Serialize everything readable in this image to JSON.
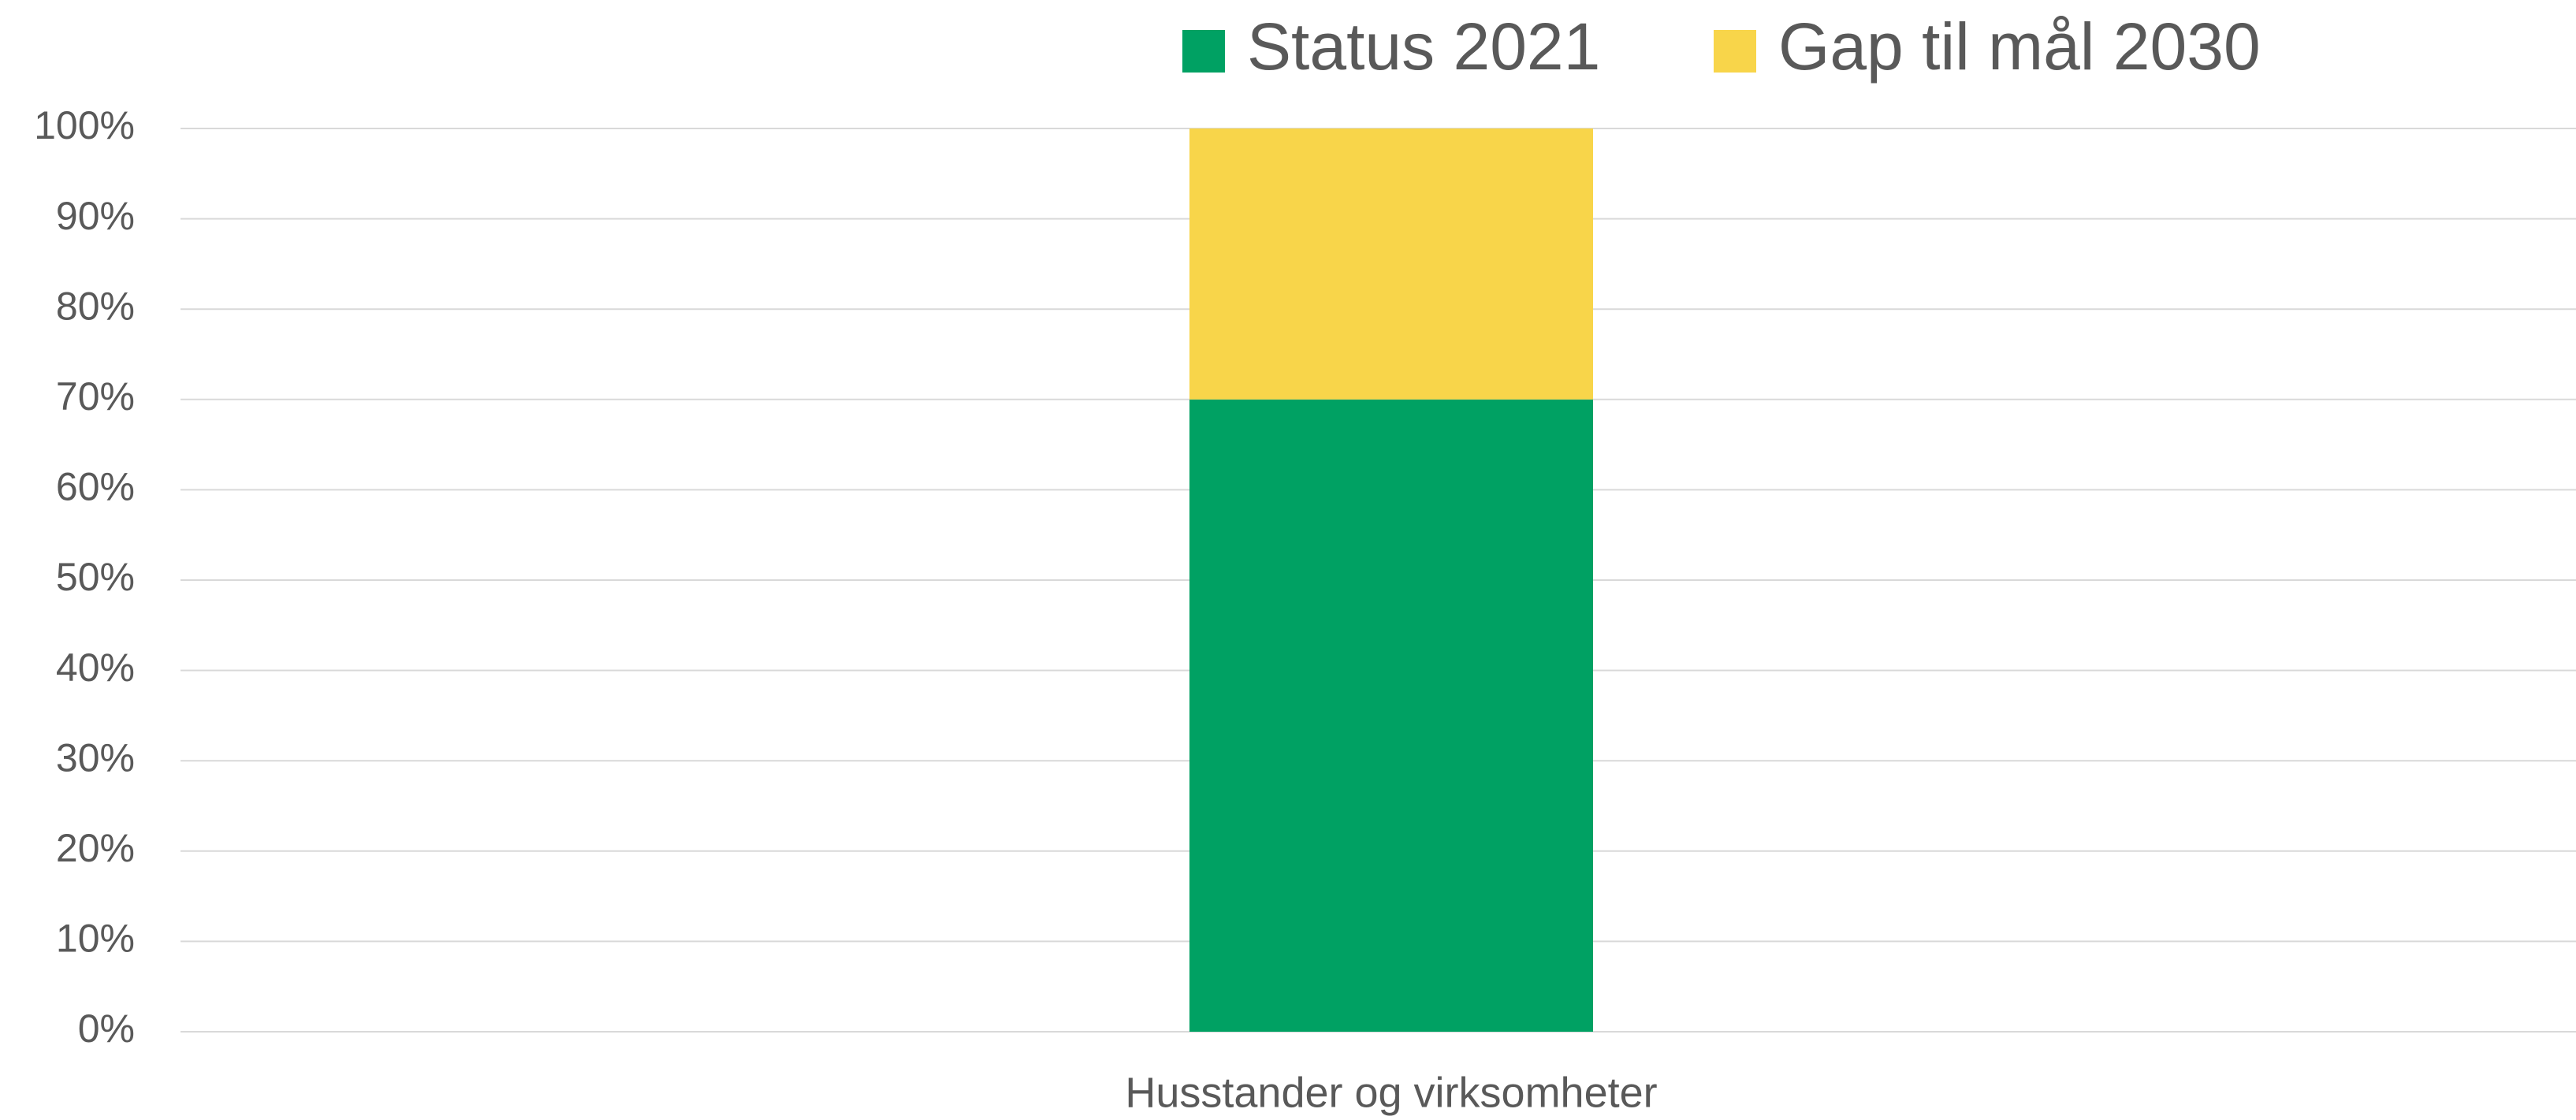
{
  "chart_data": {
    "type": "stacked_bar",
    "categories": [
      "Husstander og virksomheter"
    ],
    "series": [
      {
        "name": "Status 2021",
        "color": "#00a163",
        "values": [
          70
        ]
      },
      {
        "name": "Gap til mål 2030",
        "color": "#f8d54a",
        "values": [
          30
        ]
      }
    ],
    "ylim": [
      0,
      100
    ],
    "yticks": [
      {
        "value": 0,
        "label": "0%"
      },
      {
        "value": 10,
        "label": "10%"
      },
      {
        "value": 20,
        "label": "20%"
      },
      {
        "value": 30,
        "label": "30%"
      },
      {
        "value": 40,
        "label": "40%"
      },
      {
        "value": 50,
        "label": "50%"
      },
      {
        "value": 60,
        "label": "60%"
      },
      {
        "value": 70,
        "label": "70%"
      },
      {
        "value": 80,
        "label": "80%"
      },
      {
        "value": 90,
        "label": "90%"
      },
      {
        "value": 100,
        "label": "100%"
      }
    ],
    "grid": true,
    "legend": "top"
  }
}
